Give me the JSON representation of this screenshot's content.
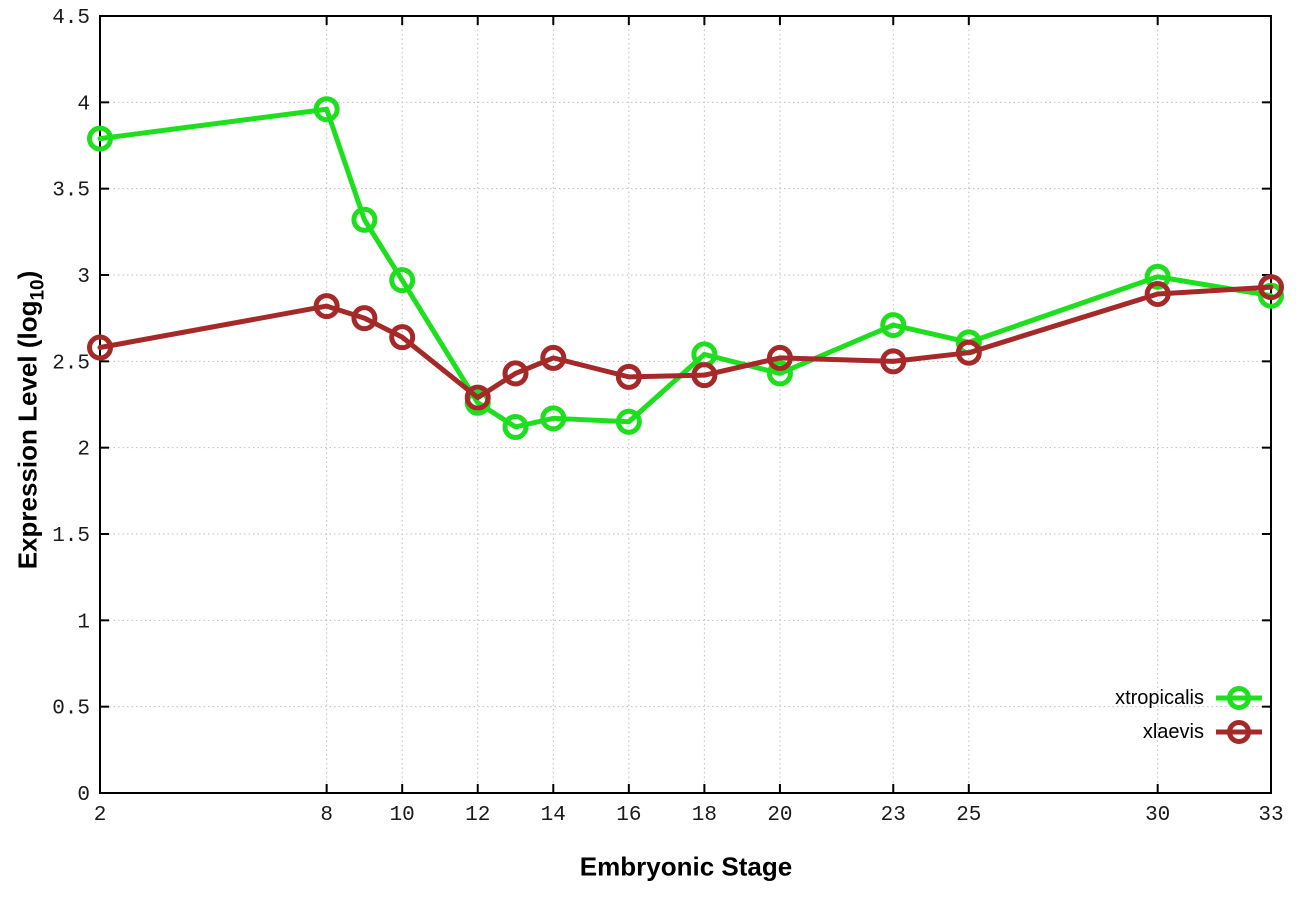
{
  "chart_data": {
    "type": "line",
    "title": "",
    "xlabel": "Embryonic Stage",
    "ylabel": "Expression Level (log10)",
    "ylabel_parts": {
      "prefix": "Expression Level (log",
      "sub": "10",
      "suffix": ")"
    },
    "x": [
      2,
      8,
      9,
      10,
      12,
      13,
      14,
      16,
      18,
      20,
      23,
      25,
      30,
      33
    ],
    "xticks": [
      2,
      8,
      10,
      12,
      14,
      16,
      18,
      20,
      23,
      25,
      30,
      33
    ],
    "yticks": [
      0,
      0.5,
      1,
      1.5,
      2,
      2.5,
      3,
      3.5,
      4,
      4.5
    ],
    "xlim": [
      2,
      33
    ],
    "ylim": [
      0,
      4.5
    ],
    "grid": true,
    "legend_position": "bottom-right",
    "series": [
      {
        "name": "xtropicalis",
        "color": "#1ddf1d",
        "values": [
          3.79,
          3.96,
          3.32,
          2.97,
          2.26,
          2.12,
          2.17,
          2.15,
          2.54,
          2.43,
          2.71,
          2.61,
          2.99,
          2.88
        ]
      },
      {
        "name": "xlaevis",
        "color": "#a62929",
        "values": [
          2.58,
          2.82,
          2.75,
          2.64,
          2.29,
          2.43,
          2.52,
          2.41,
          2.42,
          2.52,
          2.5,
          2.55,
          2.89,
          2.93
        ]
      }
    ]
  },
  "colors": {
    "background": "#ffffff",
    "axis": "#000000",
    "grid": "#bfbfbf",
    "tick_text": "#1a1a1a"
  }
}
